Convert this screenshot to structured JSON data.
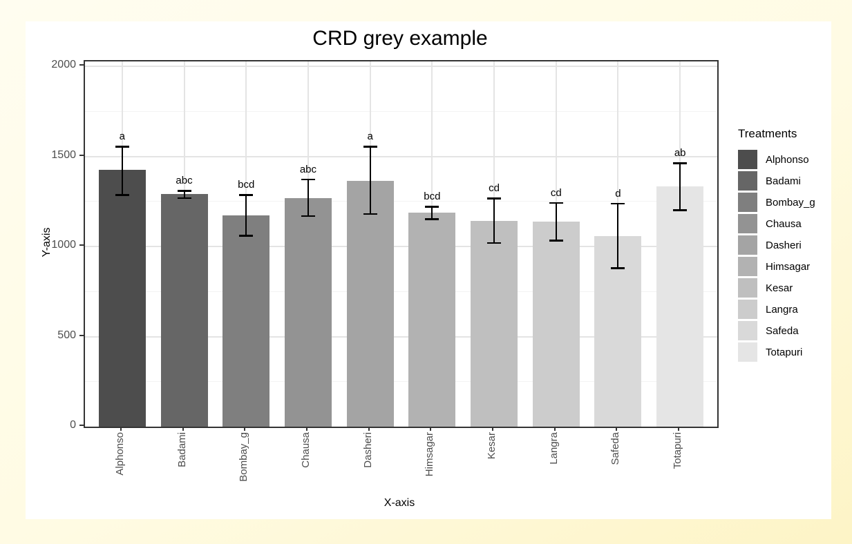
{
  "page": {
    "background_top_left": "#fffdf0",
    "background_bottom_right": "#fdf4c6",
    "card_background": "#ffffff"
  },
  "chart_data": {
    "type": "bar",
    "title": "CRD grey example",
    "xlabel": "X-axis",
    "ylabel": "Y-axis",
    "legend_title": "Treatments",
    "legend_position": "right",
    "categories": [
      "Alphonso",
      "Badami",
      "Bombay_g",
      "Chausa",
      "Dasheri",
      "Himsagar",
      "Kesar",
      "Langra",
      "Safeda",
      "Totapuri"
    ],
    "values": [
      1425,
      1290,
      1172,
      1270,
      1365,
      1186,
      1140,
      1138,
      1057,
      1333
    ],
    "error_low": [
      1285,
      1268,
      1058,
      1168,
      1180,
      1150,
      1018,
      1032,
      878,
      1200
    ],
    "error_high": [
      1555,
      1310,
      1287,
      1372,
      1555,
      1222,
      1268,
      1243,
      1238,
      1462
    ],
    "sig_letters": [
      "a",
      "abc",
      "bcd",
      "abc",
      "a",
      "bcd",
      "cd",
      "cd",
      "d",
      "ab"
    ],
    "bar_colors": [
      "#4d4d4d",
      "#666666",
      "#7f7f7f",
      "#939393",
      "#a4a4a4",
      "#b2b2b2",
      "#bfbfbf",
      "#cccccc",
      "#d9d9d9",
      "#e5e5e5"
    ],
    "ylim": [
      0,
      2000
    ],
    "yticks_major": [
      0,
      500,
      1000,
      1500,
      2000
    ],
    "yticks_minor": [
      250,
      750,
      1250,
      1750
    ],
    "grid": true,
    "panel_border_color": "#333333",
    "grid_major_color": "#e4e4e4",
    "grid_minor_color": "#f3f3f3",
    "tick_label_color": "#4d4d4d",
    "error_bar_color": "#000000"
  }
}
